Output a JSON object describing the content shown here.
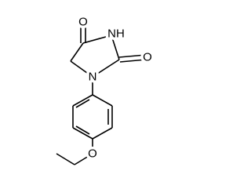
{
  "nodes": [
    {
      "label": "O"
    },
    {
      "label": "NH"
    },
    {
      "label": "O"
    },
    {
      "label": "N"
    },
    {
      "label": "O"
    }
  ]
}
